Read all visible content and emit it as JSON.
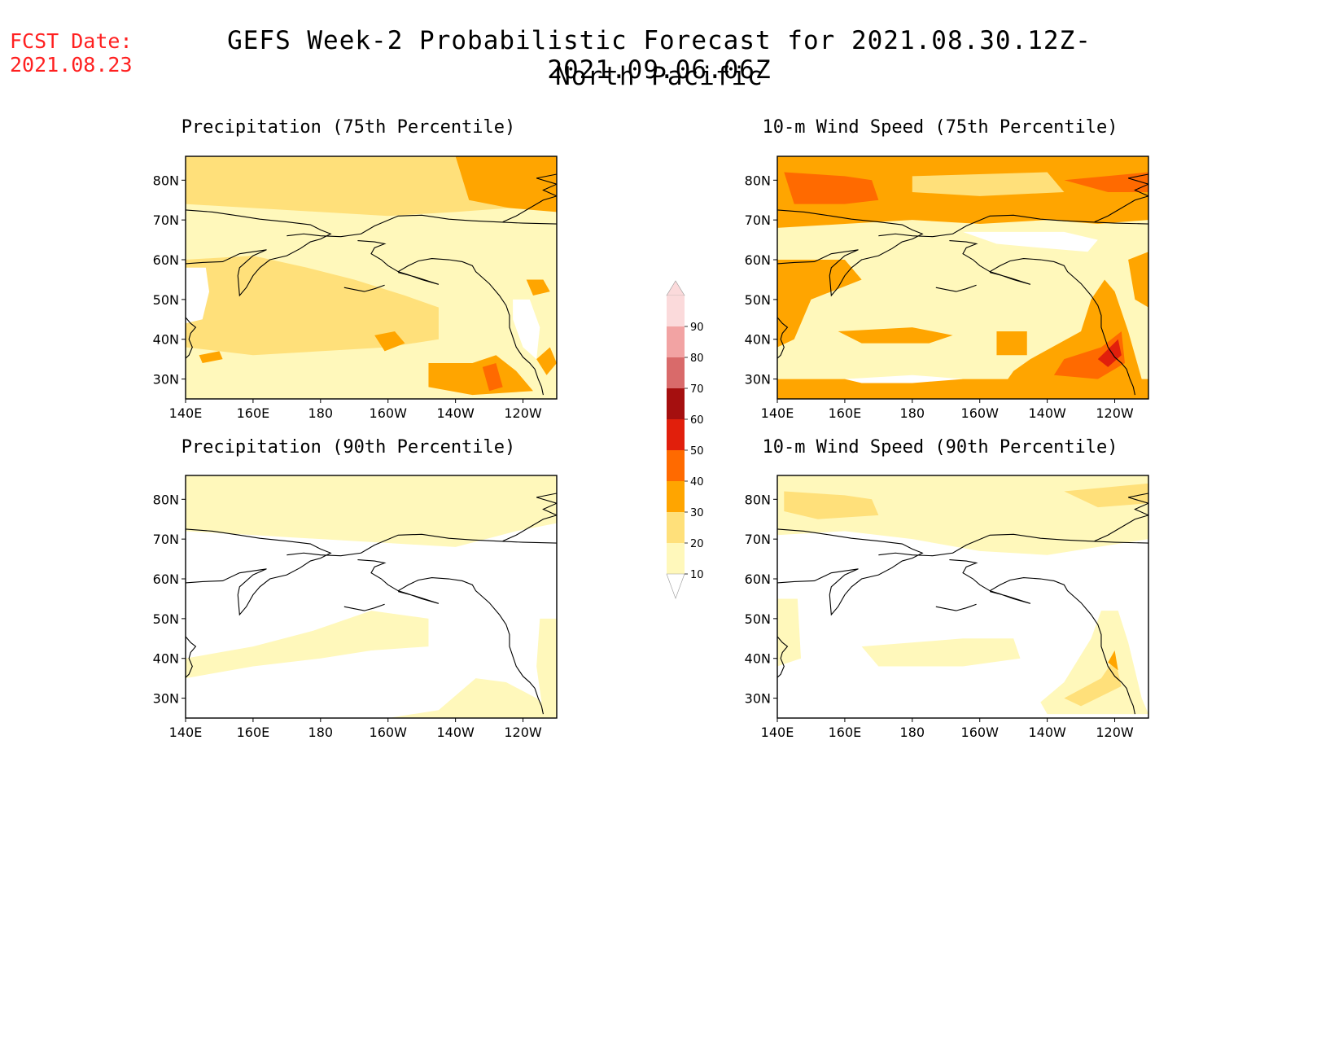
{
  "header": {
    "fcst_label": "FCST Date:",
    "fcst_date": "2021.08.23",
    "title": "GEFS Week-2 Probabilistic Forecast for 2021.08.30.12Z-2021.09.06.06Z",
    "subtitle": "North Pacific"
  },
  "axes": {
    "lat_labels": [
      "80N",
      "70N",
      "60N",
      "50N",
      "40N",
      "30N"
    ],
    "lon_labels": [
      "140E",
      "160E",
      "180",
      "160W",
      "140W",
      "120W"
    ]
  },
  "panels": [
    {
      "title": "Precipitation (75th Percentile)",
      "level": "medium",
      "field": "precip75"
    },
    {
      "title": "10-m Wind Speed (75th Percentile)",
      "level": "high",
      "field": "wind75"
    },
    {
      "title": "Precipitation (90th Percentile)",
      "level": "low",
      "field": "precip90"
    },
    {
      "title": "10-m Wind Speed (90th Percentile)",
      "level": "low",
      "field": "wind90"
    }
  ],
  "colorbar": {
    "labels": [
      "90",
      "80",
      "70",
      "60",
      "50",
      "40",
      "30",
      "20",
      "10"
    ],
    "colors": [
      "#fbdadb",
      "#f2a3a3",
      "#d96a6a",
      "#a50f0f",
      "#e11f0c",
      "#ff6a00",
      "#ffa500",
      "#ffe07a",
      "#fff8bb"
    ]
  }
}
